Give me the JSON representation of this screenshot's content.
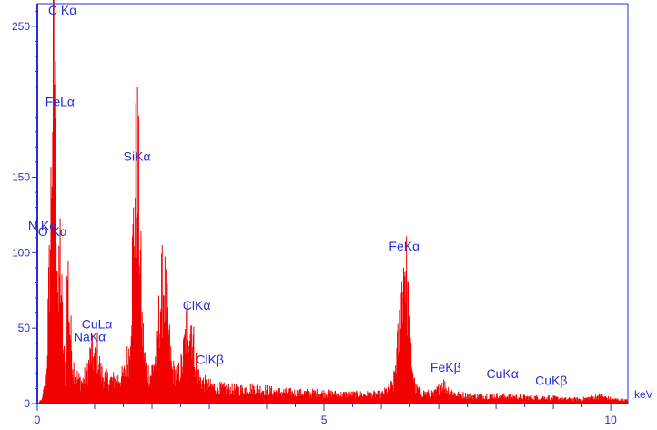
{
  "chart_data": {
    "type": "bar",
    "xlabel": "keV",
    "ylabel": "",
    "xlim": [
      0,
      10.3
    ],
    "ylim": [
      0,
      265
    ],
    "x_ticks": [
      0,
      5,
      10
    ],
    "y_ticks": [
      0,
      50,
      100,
      150,
      250
    ],
    "grid": false,
    "colors": {
      "bars": "#f20000",
      "axis": "#2b2bd9",
      "frame": "#2b2bd9",
      "background": "#ffffff"
    },
    "peaks": [
      {
        "label": "C Kα",
        "x": 0.28,
        "y": 254
      },
      {
        "label": "FeLα",
        "x": 0.3,
        "y": 170
      },
      {
        "label": "O Kα",
        "x": 0.52,
        "y": 90
      },
      {
        "label": "N Kα",
        "x": 0.39,
        "y": 100
      },
      {
        "label": "CuLα",
        "x": 0.93,
        "y": 33
      },
      {
        "label": "NaKα",
        "x": 1.04,
        "y": 34
      },
      {
        "label": "SiKα",
        "x": 1.74,
        "y": 156
      },
      {
        "label": "ClKα",
        "x": 2.62,
        "y": 56
      },
      {
        "label": "ClKβ",
        "x": 2.82,
        "y": 16
      },
      {
        "label": "FeKα",
        "x": 6.4,
        "y": 96
      },
      {
        "label": "FeKβ",
        "x": 7.06,
        "y": 14
      },
      {
        "label": "CuKα",
        "x": 8.05,
        "y": 6
      },
      {
        "label": "CuKβ",
        "x": 8.9,
        "y": 4
      }
    ],
    "spectrum_envelope": [
      [
        0.0,
        0
      ],
      [
        0.08,
        3
      ],
      [
        0.15,
        18
      ],
      [
        0.22,
        105
      ],
      [
        0.28,
        254
      ],
      [
        0.32,
        150
      ],
      [
        0.36,
        60
      ],
      [
        0.39,
        100
      ],
      [
        0.44,
        40
      ],
      [
        0.48,
        18
      ],
      [
        0.52,
        90
      ],
      [
        0.56,
        50
      ],
      [
        0.62,
        25
      ],
      [
        0.7,
        16
      ],
      [
        0.78,
        14
      ],
      [
        0.86,
        20
      ],
      [
        0.93,
        33
      ],
      [
        1.0,
        28
      ],
      [
        1.04,
        34
      ],
      [
        1.1,
        20
      ],
      [
        1.2,
        16
      ],
      [
        1.3,
        15
      ],
      [
        1.4,
        16
      ],
      [
        1.5,
        18
      ],
      [
        1.6,
        35
      ],
      [
        1.66,
        100
      ],
      [
        1.7,
        140
      ],
      [
        1.74,
        156
      ],
      [
        1.78,
        110
      ],
      [
        1.82,
        50
      ],
      [
        1.88,
        24
      ],
      [
        1.96,
        18
      ],
      [
        2.06,
        30
      ],
      [
        2.14,
        67
      ],
      [
        2.2,
        80
      ],
      [
        2.26,
        55
      ],
      [
        2.34,
        22
      ],
      [
        2.44,
        18
      ],
      [
        2.52,
        26
      ],
      [
        2.58,
        45
      ],
      [
        2.62,
        56
      ],
      [
        2.68,
        52
      ],
      [
        2.74,
        30
      ],
      [
        2.82,
        16
      ],
      [
        2.95,
        12
      ],
      [
        3.2,
        10
      ],
      [
        3.5,
        9
      ],
      [
        3.8,
        10
      ],
      [
        4.1,
        8
      ],
      [
        4.5,
        7
      ],
      [
        4.9,
        7
      ],
      [
        5.3,
        6
      ],
      [
        5.7,
        6
      ],
      [
        6.0,
        6
      ],
      [
        6.2,
        12
      ],
      [
        6.3,
        45
      ],
      [
        6.36,
        80
      ],
      [
        6.4,
        96
      ],
      [
        6.44,
        75
      ],
      [
        6.5,
        35
      ],
      [
        6.58,
        10
      ],
      [
        6.7,
        7
      ],
      [
        6.9,
        6
      ],
      [
        7.0,
        10
      ],
      [
        7.06,
        14
      ],
      [
        7.12,
        10
      ],
      [
        7.3,
        6
      ],
      [
        7.6,
        5
      ],
      [
        8.0,
        5
      ],
      [
        8.05,
        6
      ],
      [
        8.1,
        5
      ],
      [
        8.6,
        4
      ],
      [
        8.9,
        4
      ],
      [
        9.2,
        3
      ],
      [
        9.5,
        3
      ],
      [
        9.8,
        5
      ],
      [
        10.0,
        3
      ],
      [
        10.3,
        2
      ]
    ]
  }
}
